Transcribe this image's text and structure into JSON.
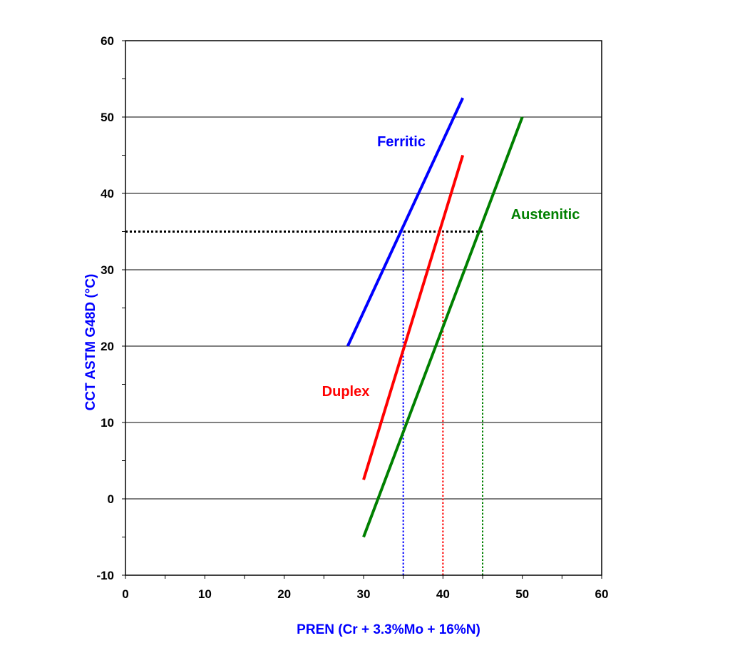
{
  "chart_data": {
    "type": "line",
    "title": "",
    "xlabel": "PREN (Cr + 3.3%Mo + 16%N)",
    "ylabel": "CCT ASTM G48D (°C)",
    "xlim": [
      0,
      60
    ],
    "ylim": [
      -10,
      60
    ],
    "x_ticks": [
      0,
      10,
      20,
      30,
      40,
      50,
      60
    ],
    "y_ticks": [
      -10,
      0,
      10,
      20,
      30,
      40,
      50,
      60
    ],
    "x_tick_labels": [
      "0",
      "10",
      "20",
      "30",
      "40",
      "50",
      "60"
    ],
    "y_tick_labels": [
      "-10",
      "0",
      "10",
      "20",
      "30",
      "40",
      "50",
      "60"
    ],
    "grid": "horizontal",
    "axis_label_color": "#0000ff",
    "series": [
      {
        "name": "Ferritic",
        "color": "#0000ff",
        "x": [
          28,
          42.5
        ],
        "y": [
          20,
          52.5
        ]
      },
      {
        "name": "Duplex",
        "color": "#ff0000",
        "x": [
          30,
          42.5
        ],
        "y": [
          2.5,
          45
        ]
      },
      {
        "name": "Austenitic",
        "color": "#008000",
        "x": [
          30,
          50
        ],
        "y": [
          -5,
          50
        ]
      }
    ],
    "reference_lines": [
      {
        "orientation": "horizontal",
        "color": "#000000",
        "x": [
          0,
          45
        ],
        "y": [
          35,
          35
        ]
      },
      {
        "orientation": "vertical",
        "color": "#0000ff",
        "x": [
          35,
          35
        ],
        "y": [
          -10,
          35
        ]
      },
      {
        "orientation": "vertical",
        "color": "#ff0000",
        "x": [
          40,
          40
        ],
        "y": [
          -10,
          35
        ]
      },
      {
        "orientation": "vertical",
        "color": "#008000",
        "x": [
          45,
          45
        ],
        "y": [
          -10,
          35
        ]
      }
    ]
  }
}
